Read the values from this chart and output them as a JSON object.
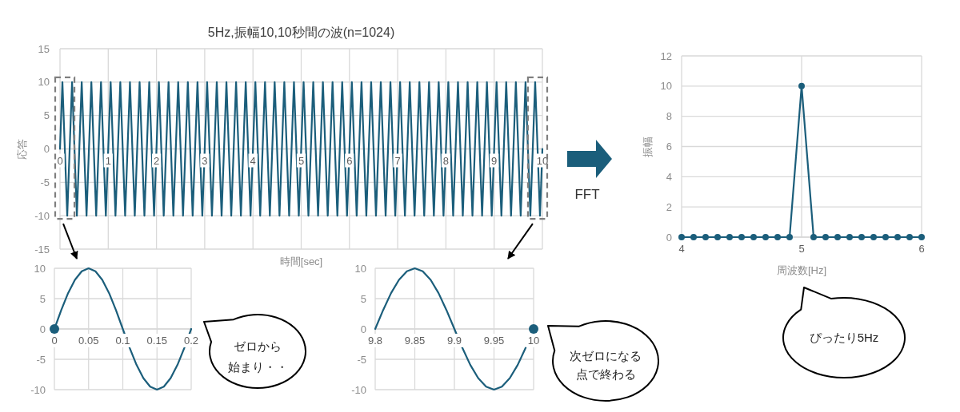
{
  "chart_data": [
    {
      "type": "line",
      "title": "5Hz,振幅10,10秒間の波(n=1024)",
      "xlabel": "時間[sec]",
      "ylabel": "応答",
      "x": [
        0,
        0.05,
        0.15,
        0.25,
        0.35,
        0.45,
        0.55,
        0.65,
        0.75,
        0.85,
        0.95,
        1.05,
        1.15,
        1.25,
        1.35,
        1.45,
        1.55,
        1.65,
        1.75,
        1.85,
        1.95,
        2.05,
        2.15,
        2.25,
        2.35,
        2.45,
        2.55,
        2.65,
        2.75,
        2.85,
        2.95,
        3.05,
        3.15,
        3.25,
        3.35,
        3.45,
        3.55,
        3.65,
        3.75,
        3.85,
        3.95,
        4.05,
        4.15,
        4.25,
        4.35,
        4.45,
        4.55,
        4.65,
        4.75,
        4.85,
        4.95,
        5.05,
        5.15,
        5.25,
        5.35,
        5.45,
        5.55,
        5.65,
        5.75,
        5.85,
        5.95,
        6.05,
        6.15,
        6.25,
        6.35,
        6.45,
        6.55,
        6.65,
        6.75,
        6.85,
        6.95,
        7.05,
        7.15,
        7.25,
        7.35,
        7.45,
        7.55,
        7.65,
        7.75,
        7.85,
        7.95,
        8.05,
        8.15,
        8.25,
        8.35,
        8.45,
        8.55,
        8.65,
        8.75,
        8.85,
        8.95,
        9.05,
        9.15,
        9.25,
        9.35,
        9.45,
        9.55,
        9.65,
        9.75,
        9.85,
        9.95,
        10
      ],
      "series": [
        {
          "color": "#1b5e7b",
          "values": [
            0,
            10,
            -10,
            10,
            -10,
            10,
            -10,
            10,
            -10,
            10,
            -10,
            10,
            -10,
            10,
            -10,
            10,
            -10,
            10,
            -10,
            10,
            -10,
            10,
            -10,
            10,
            -10,
            10,
            -10,
            10,
            -10,
            10,
            -10,
            10,
            -10,
            10,
            -10,
            10,
            -10,
            10,
            -10,
            10,
            -10,
            10,
            -10,
            10,
            -10,
            10,
            -10,
            10,
            -10,
            10,
            -10,
            10,
            -10,
            10,
            -10,
            10,
            -10,
            10,
            -10,
            10,
            -10,
            10,
            -10,
            10,
            -10,
            10,
            -10,
            10,
            -10,
            10,
            -10,
            10,
            -10,
            10,
            -10,
            10,
            -10,
            10,
            -10,
            10,
            -10,
            10,
            -10,
            10,
            -10,
            10,
            -10,
            10,
            -10,
            10,
            -10,
            10,
            -10,
            10,
            -10,
            10,
            -10,
            10,
            -10,
            10,
            -10,
            0
          ]
        }
      ],
      "xlim": [
        0,
        10
      ],
      "xticks": [
        0,
        1,
        2,
        3,
        4,
        5,
        6,
        7,
        8,
        9,
        10
      ],
      "ylim": [
        -15,
        15
      ],
      "yticks": [
        -15,
        -10,
        -5,
        0,
        5,
        10,
        15
      ],
      "grid": true
    },
    {
      "type": "line",
      "x": [
        0,
        0.01,
        0.02,
        0.03,
        0.04,
        0.05,
        0.06,
        0.07,
        0.08,
        0.09,
        0.1,
        0.11,
        0.12,
        0.13,
        0.14,
        0.15,
        0.16,
        0.17,
        0.18,
        0.19,
        0.2
      ],
      "series": [
        {
          "color": "#1b5e7b",
          "values": [
            0,
            3.1,
            5.9,
            8.1,
            9.5,
            10,
            9.5,
            8.1,
            5.9,
            3.1,
            0,
            -3.1,
            -5.9,
            -8.1,
            -9.5,
            -10,
            -9.5,
            -8.1,
            -5.9,
            -3.1,
            0
          ]
        },
        {
          "type": "scatter",
          "color": "#1b5e7b",
          "x": [
            0
          ],
          "values": [
            0
          ],
          "marker": "circle"
        }
      ],
      "xlim": [
        0,
        0.2
      ],
      "xticks": [
        0,
        0.05,
        0.1,
        0.15,
        0.2
      ],
      "ylim": [
        -10,
        10
      ],
      "yticks": [
        -10,
        -5,
        0,
        5,
        10
      ],
      "grid": true,
      "annotations": [
        "ゼロから",
        "始まり・・"
      ]
    },
    {
      "type": "line",
      "x": [
        9.8,
        9.81,
        9.82,
        9.83,
        9.84,
        9.85,
        9.86,
        9.87,
        9.88,
        9.89,
        9.9,
        9.91,
        9.92,
        9.93,
        9.94,
        9.95,
        9.96,
        9.97,
        9.98,
        9.99
      ],
      "series": [
        {
          "color": "#1b5e7b",
          "values": [
            0,
            3.1,
            5.9,
            8.1,
            9.5,
            10,
            9.5,
            8.1,
            5.9,
            3.1,
            0,
            -3.1,
            -5.9,
            -8.1,
            -9.5,
            -10,
            -9.5,
            -8.1,
            -5.9,
            -3.1
          ]
        },
        {
          "type": "scatter",
          "color": "#1b5e7b",
          "x": [
            10
          ],
          "values": [
            0
          ],
          "marker": "circle"
        }
      ],
      "xlim": [
        9.8,
        10
      ],
      "xticks": [
        9.8,
        9.85,
        9.9,
        9.95,
        10
      ],
      "ylim": [
        -10,
        10
      ],
      "yticks": [
        -10,
        -5,
        0,
        5,
        10
      ],
      "grid": true,
      "annotations": [
        "次ゼロになる",
        "点で終わる"
      ]
    },
    {
      "type": "line",
      "xlabel": "周波数[Hz]",
      "ylabel": "振幅",
      "x": [
        4,
        4.1,
        4.2,
        4.3,
        4.4,
        4.5,
        4.6,
        4.7,
        4.8,
        4.9,
        5,
        5.1,
        5.2,
        5.3,
        5.4,
        5.5,
        5.6,
        5.7,
        5.8,
        5.9,
        6
      ],
      "series": [
        {
          "color": "#1b5e7b",
          "values": [
            0,
            0,
            0,
            0,
            0,
            0,
            0,
            0,
            0,
            0,
            10,
            0,
            0,
            0,
            0,
            0,
            0,
            0,
            0,
            0,
            0
          ]
        }
      ],
      "marker": "circle",
      "xlim": [
        4,
        6
      ],
      "xticks": [
        4,
        5,
        6
      ],
      "ylim": [
        0,
        12
      ],
      "yticks": [
        0,
        2,
        4,
        6,
        8,
        10,
        12
      ],
      "grid": true,
      "annotations": [
        "FFT",
        "ぴったり5Hz"
      ]
    }
  ]
}
